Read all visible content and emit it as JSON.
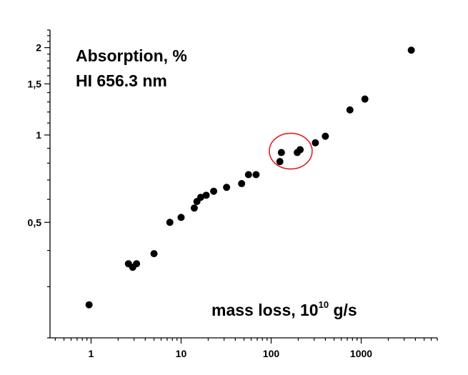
{
  "chart_data": {
    "type": "scatter",
    "title_lines": [
      "Absorption, %",
      "HI 656.3 nm"
    ],
    "xlabel": "mass loss, 10",
    "xlabel_exp": "10",
    "xlabel_unit": " g/s",
    "x_scale": "log",
    "y_scale": "log",
    "xlim": [
      0.35,
      7000
    ],
    "ylim": [
      0.2,
      2.3
    ],
    "x_ticks": [
      1,
      10,
      100,
      1000
    ],
    "x_tick_labels": [
      "1",
      "10",
      "100",
      "1000"
    ],
    "y_ticks": [
      0.5,
      1,
      1.5,
      2
    ],
    "y_tick_labels": [
      "0,5",
      "1",
      "1,5",
      "2"
    ],
    "grid": false,
    "legend": "none",
    "marker_color": "#000000",
    "highlight_color": "#e02020",
    "highlight_ellipse": {
      "cx": 165,
      "cy": 0.88
    },
    "points": [
      {
        "x": 0.95,
        "y": 0.26
      },
      {
        "x": 2.6,
        "y": 0.36
      },
      {
        "x": 2.9,
        "y": 0.35
      },
      {
        "x": 3.2,
        "y": 0.36
      },
      {
        "x": 5.0,
        "y": 0.39
      },
      {
        "x": 7.5,
        "y": 0.5
      },
      {
        "x": 10,
        "y": 0.52
      },
      {
        "x": 14,
        "y": 0.56
      },
      {
        "x": 15,
        "y": 0.59
      },
      {
        "x": 16.5,
        "y": 0.61
      },
      {
        "x": 19,
        "y": 0.62
      },
      {
        "x": 23,
        "y": 0.64
      },
      {
        "x": 32,
        "y": 0.66
      },
      {
        "x": 47,
        "y": 0.68
      },
      {
        "x": 56,
        "y": 0.73
      },
      {
        "x": 68,
        "y": 0.73
      },
      {
        "x": 125,
        "y": 0.81
      },
      {
        "x": 130,
        "y": 0.87
      },
      {
        "x": 195,
        "y": 0.87
      },
      {
        "x": 210,
        "y": 0.89
      },
      {
        "x": 310,
        "y": 0.94
      },
      {
        "x": 400,
        "y": 0.99
      },
      {
        "x": 750,
        "y": 1.22
      },
      {
        "x": 1100,
        "y": 1.33
      },
      {
        "x": 3600,
        "y": 1.96
      }
    ]
  }
}
